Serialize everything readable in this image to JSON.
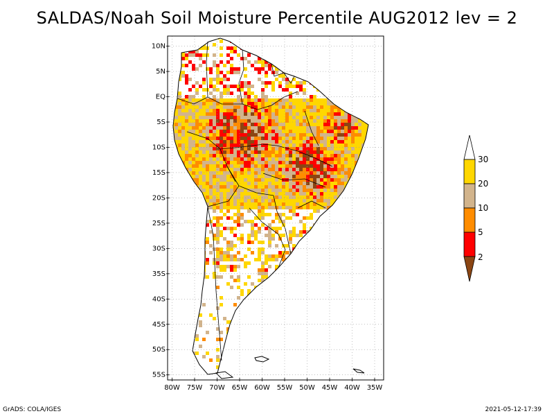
{
  "title": "SALDAS/Noah Soil Moisture Percentile AUG2012 lev = 2",
  "axes": {
    "lat_labels": [
      "10N",
      "5N",
      "EQ",
      "5S",
      "10S",
      "15S",
      "20S",
      "25S",
      "30S",
      "35S",
      "40S",
      "45S",
      "50S",
      "55S"
    ],
    "lat_values": [
      10,
      5,
      0,
      -5,
      -10,
      -15,
      -20,
      -25,
      -30,
      -35,
      -40,
      -45,
      -50,
      -55
    ],
    "lon_labels": [
      "80W",
      "75W",
      "70W",
      "65W",
      "60W",
      "55W",
      "50W",
      "45W",
      "40W",
      "35W"
    ],
    "lon_values": [
      -80,
      -75,
      -70,
      -65,
      -60,
      -55,
      -50,
      -45,
      -40,
      -35
    ],
    "lat_range": [
      -56,
      12
    ],
    "lon_range": [
      -81,
      -33
    ]
  },
  "legend": {
    "labels": [
      "30",
      "20",
      "10",
      "5",
      "2"
    ],
    "colors": {
      "above_30": "#ffffff",
      "20_30": "#ffd700",
      "10_20": "#d2b48c",
      "5_10": "#ff8c00",
      "2_5": "#ff0000",
      "below_2": "#8b4513"
    }
  },
  "footer": {
    "left": "GrADS: COLA/IGES",
    "right": "2021-05-12-17:39"
  }
}
